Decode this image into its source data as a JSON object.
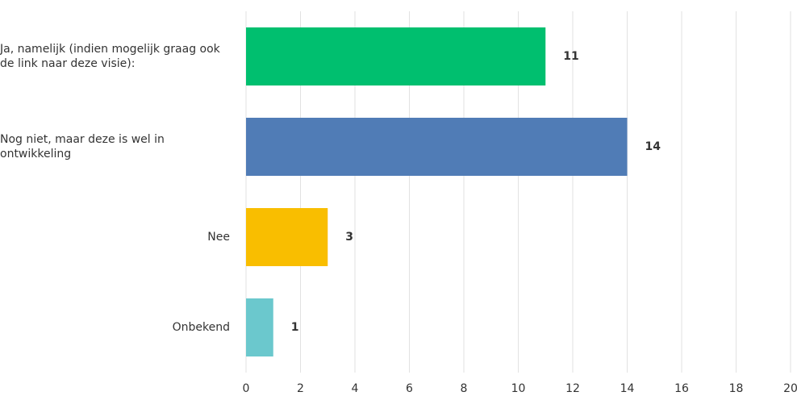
{
  "chart_data": {
    "type": "bar",
    "orientation": "horizontal",
    "categories": [
      "Ja, namelijk (indien mogelijk graag ook de link naar deze visie):",
      "Nog niet, maar deze is wel in ontwikkeling",
      "Nee",
      "Onbekend"
    ],
    "values": [
      11,
      14,
      3,
      1
    ],
    "colors": [
      "#00bf6f",
      "#507cb6",
      "#f9be00",
      "#6bc8cd"
    ],
    "xlim": [
      0,
      20
    ],
    "xticks": [
      0,
      2,
      4,
      6,
      8,
      10,
      12,
      14,
      16,
      18,
      20
    ],
    "grid": true
  }
}
